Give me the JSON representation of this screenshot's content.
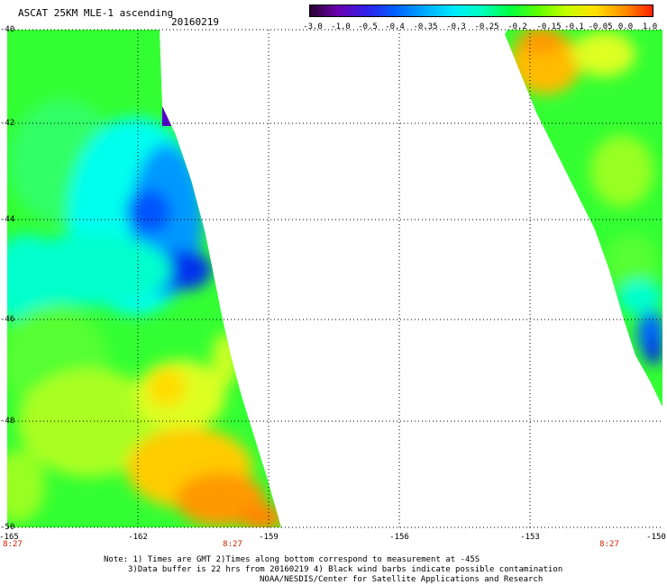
{
  "header": {
    "title": "ASCAT 25KM MLE-1 ascending",
    "date": "20160219"
  },
  "colorbar": {
    "tick_labels": [
      "-3.0",
      "-1.0",
      "-0.5",
      "-0.4",
      "-0.35",
      "-0.3",
      "-0.25",
      "-0.2",
      "-0.15",
      "-0.1",
      "-0.05",
      "0.0",
      "1.0"
    ],
    "colors": [
      "#2a0030",
      "#6a00b0",
      "#3020e8",
      "#0060ff",
      "#00a8ff",
      "#00e8ff",
      "#00ffc0",
      "#00ff40",
      "#60ff00",
      "#c8ff00",
      "#ffe000",
      "#ff9000",
      "#ff2000"
    ]
  },
  "axes": {
    "lat_labels": [
      "-40",
      "-42",
      "-44",
      "-46",
      "-48",
      "-50"
    ],
    "lon_labels": [
      "-165",
      "-162",
      "-159",
      "-156",
      "-153",
      "-150"
    ],
    "time_labels": [
      "8:27",
      "8:27",
      "8:27"
    ]
  },
  "notes": {
    "line1": "Note: 1) Times are GMT 2)Times along bottom correspond to measurement at -45S",
    "line2": "3)Data buffer is 22 hrs from 20160219 4) Black wind barbs indicate possible contamination",
    "line3": "NOAA/NESDIS/Center for Satellite Applications and Research"
  }
}
